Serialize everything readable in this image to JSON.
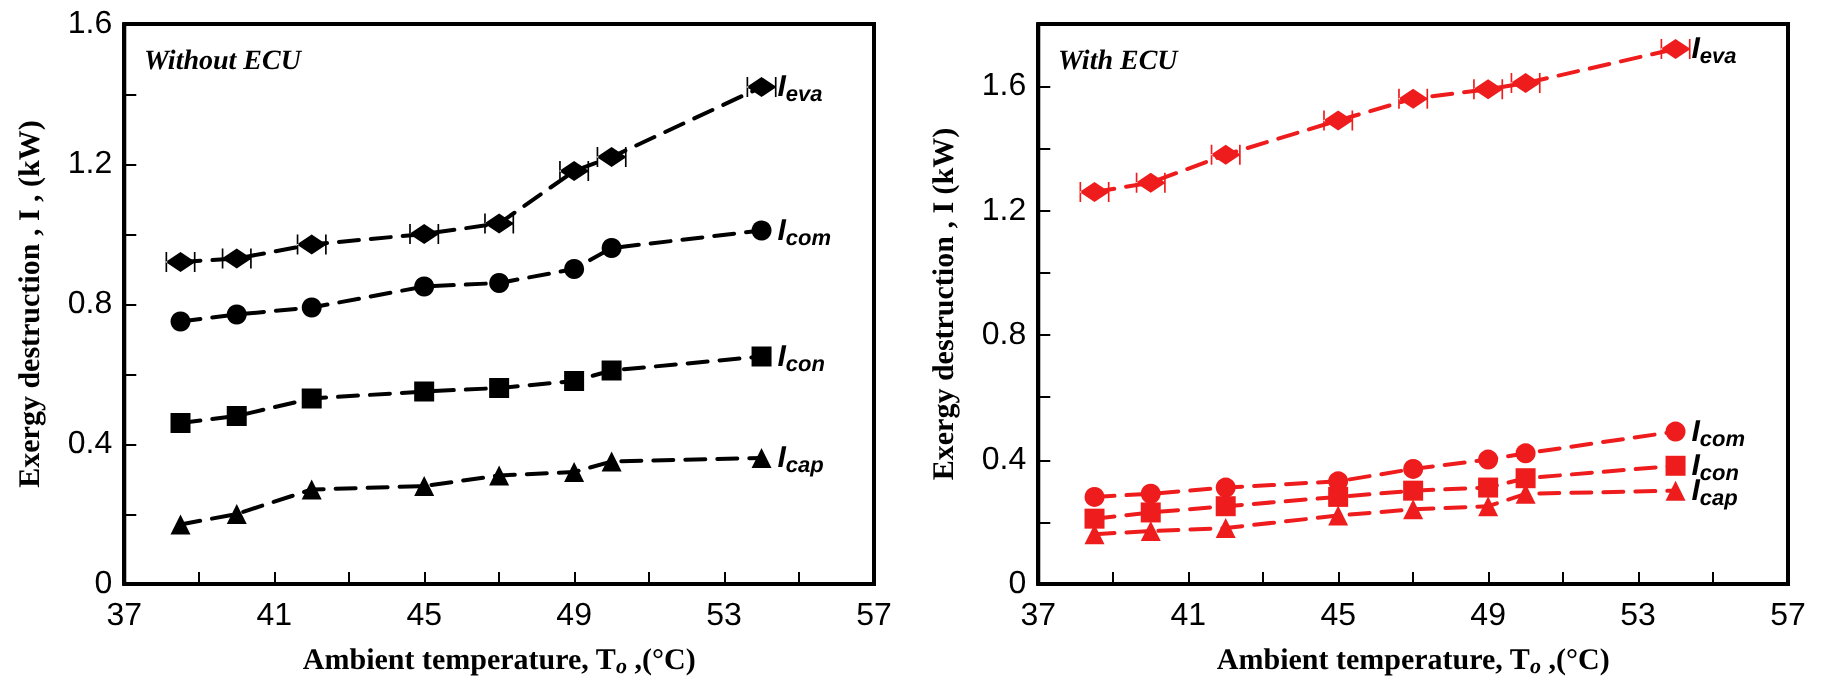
{
  "chart_data": [
    {
      "type": "line",
      "annotations": [
        "Without ECU"
      ],
      "xlabel": "Ambient temperature, T$_{o}$ ,(°C)",
      "ylabel": "Exergy destruction , I , (kW)",
      "x": [
        38.5,
        40,
        42,
        45,
        47,
        49,
        50,
        54
      ],
      "xlim": [
        37,
        57
      ],
      "xticks": [
        37,
        {
          "value": 39,
          "label": null
        },
        41,
        {
          "value": 43,
          "label": null
        },
        45,
        {
          "value": 47,
          "label": null
        },
        49,
        {
          "value": 51,
          "label": null
        },
        53,
        {
          "value": 55,
          "label": null
        },
        57
      ],
      "ylim": [
        0,
        1.6
      ],
      "yticks": [
        0,
        {
          "value": 0.2,
          "label": null
        },
        0.4,
        {
          "value": 0.6,
          "label": null
        },
        0.8,
        {
          "value": 1.0,
          "label": null
        },
        1.2,
        {
          "value": 1.4,
          "label": null
        },
        1.6
      ],
      "grid": false,
      "legend": false,
      "line_style": "dashed",
      "series": [
        {
          "name": "I$_{eva}$",
          "color": "#000000",
          "marker": "cross",
          "values": [
            0.92,
            0.93,
            0.97,
            1.0,
            1.03,
            1.18,
            1.22,
            1.42
          ]
        },
        {
          "name": "I$_{com}$",
          "color": "#000000",
          "marker": "circle",
          "values": [
            0.75,
            0.77,
            0.79,
            0.85,
            0.86,
            0.9,
            0.96,
            1.01
          ]
        },
        {
          "name": "I$_{con}$",
          "color": "#000000",
          "marker": "square",
          "values": [
            0.46,
            0.48,
            0.53,
            0.55,
            0.56,
            0.58,
            0.61,
            0.65
          ]
        },
        {
          "name": "I$_{cap}$",
          "color": "#000000",
          "marker": "triangle",
          "values": [
            0.17,
            0.2,
            0.27,
            0.28,
            0.31,
            0.32,
            0.35,
            0.36
          ]
        }
      ]
    },
    {
      "type": "line",
      "annotations": [
        "With ECU"
      ],
      "xlabel": "Ambient temperature, T$_{o}$ ,(°C)",
      "ylabel": "Exergy destruction , I (kW)",
      "x": [
        38.5,
        40,
        42,
        45,
        47,
        49,
        50,
        54
      ],
      "xlim": [
        37,
        57
      ],
      "xticks": [
        37,
        {
          "value": 39,
          "label": null
        },
        41,
        {
          "value": 43,
          "label": null
        },
        45,
        {
          "value": 47,
          "label": null
        },
        49,
        {
          "value": 51,
          "label": null
        },
        53,
        {
          "value": 55,
          "label": null
        },
        57
      ],
      "ylim": [
        0,
        1.8
      ],
      "yticks": [
        0,
        {
          "value": 0.2,
          "label": null
        },
        0.4,
        {
          "value": 0.6,
          "label": null
        },
        0.8,
        {
          "value": 1.0,
          "label": null
        },
        1.2,
        {
          "value": 1.4,
          "label": null
        },
        1.6
      ],
      "grid": false,
      "legend": false,
      "line_style": "dashed",
      "series": [
        {
          "name": "I$_{eva}$",
          "color": "#ee1c1c",
          "marker": "cross",
          "values": [
            1.26,
            1.29,
            1.38,
            1.49,
            1.56,
            1.59,
            1.61,
            1.72
          ]
        },
        {
          "name": "I$_{com}$",
          "color": "#ee1c1c",
          "marker": "circle",
          "values": [
            0.28,
            0.29,
            0.31,
            0.33,
            0.37,
            0.4,
            0.42,
            0.49
          ]
        },
        {
          "name": "I$_{con}$",
          "color": "#ee1c1c",
          "marker": "square",
          "values": [
            0.21,
            0.23,
            0.25,
            0.28,
            0.3,
            0.31,
            0.34,
            0.38
          ]
        },
        {
          "name": "I$_{cap}$",
          "color": "#ee1c1c",
          "marker": "triangle",
          "values": [
            0.16,
            0.17,
            0.18,
            0.22,
            0.24,
            0.25,
            0.29,
            0.3
          ]
        }
      ]
    }
  ]
}
